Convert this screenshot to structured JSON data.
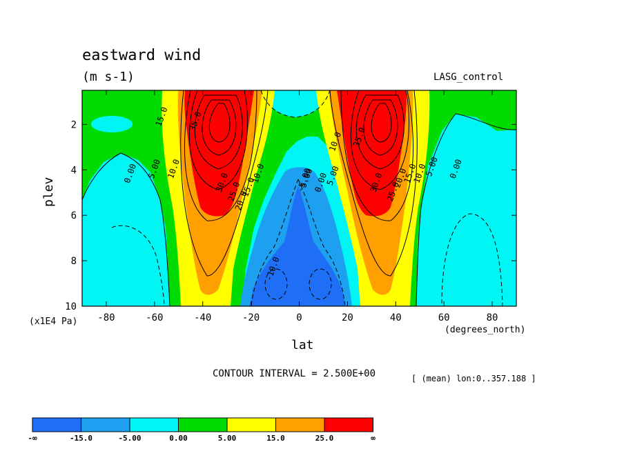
{
  "title": "eastward wind",
  "units": "(m s-1)",
  "experiment": "LASG_control",
  "ylabel": "plev",
  "yunits": "(x1E4 Pa)",
  "xlabel": "lat",
  "xunits": "(degrees_north)",
  "contour_interval": "CONTOUR INTERVAL = 2.500E+00",
  "mean_note": "[ (mean) lon:0..357.188 ]",
  "chart_data": {
    "type": "heatmap",
    "title": "eastward wind",
    "units": "(m s-1)",
    "xlabel": "lat",
    "ylabel": "plev",
    "xlim": [
      -90,
      90
    ],
    "ylim": [
      10,
      0.5
    ],
    "x_ticks": [
      -80,
      -60,
      -40,
      -20,
      0,
      20,
      40,
      60,
      80
    ],
    "y_ticks": [
      2,
      4,
      6,
      8,
      10
    ],
    "contour_interval": 2.5,
    "jets": [
      {
        "lat": -34,
        "plev": 1.6,
        "approx_max": 35
      },
      {
        "lat": 34,
        "plev": 1.6,
        "approx_max": 35
      }
    ],
    "contour_labels": [
      {
        "text": "0.00",
        "lat": -69,
        "plev": 4.2
      },
      {
        "text": "5.00",
        "lat": -59,
        "plev": 4.0
      },
      {
        "text": "10.0",
        "lat": -51,
        "plev": 4.0
      },
      {
        "text": "15.0",
        "lat": -56,
        "plev": 1.7
      },
      {
        "text": "35.0",
        "lat": -42,
        "plev": 1.9
      },
      {
        "text": "30.0",
        "lat": -31,
        "plev": 4.6
      },
      {
        "text": "25.0",
        "lat": -26,
        "plev": 5.0
      },
      {
        "text": "20.0",
        "lat": -23,
        "plev": 5.4
      },
      {
        "text": "15.0",
        "lat": -20,
        "plev": 4.8
      },
      {
        "text": "10.0",
        "lat": -16,
        "plev": 4.2
      },
      {
        "text": "5.00",
        "lat": 4,
        "plev": 4.4
      },
      {
        "text": "0.00",
        "lat": 10,
        "plev": 4.6
      },
      {
        "text": "5.00",
        "lat": 15,
        "plev": 4.3
      },
      {
        "text": "10.0",
        "lat": 16,
        "plev": 2.8
      },
      {
        "text": "35.0",
        "lat": 26,
        "plev": 2.6
      },
      {
        "text": "30.0",
        "lat": 33,
        "plev": 4.6
      },
      {
        "text": "25.0",
        "lat": 40,
        "plev": 5.0
      },
      {
        "text": "20.0",
        "lat": 43,
        "plev": 4.4
      },
      {
        "text": "15.0",
        "lat": 47,
        "plev": 4.2
      },
      {
        "text": "10.0",
        "lat": 51,
        "plev": 4.2
      },
      {
        "text": "5.00",
        "lat": 56,
        "plev": 3.9
      },
      {
        "text": "0.00",
        "lat": 66,
        "plev": 4.0
      },
      {
        "text": "-5.00",
        "lat": 3,
        "plev": 4.5
      },
      {
        "text": "-10.0",
        "lat": -10,
        "plev": 8.4
      }
    ],
    "colorbar": {
      "levels": [
        "-∞",
        "-15.0",
        "-5.00",
        "0.00",
        "5.00",
        "15.0",
        "25.0",
        "∞"
      ],
      "colors": [
        "#1e6ff5",
        "#1ea0f0",
        "#00f5f5",
        "#00dc00",
        "#ffff00",
        "#ffa000",
        "#ff0000"
      ]
    }
  }
}
